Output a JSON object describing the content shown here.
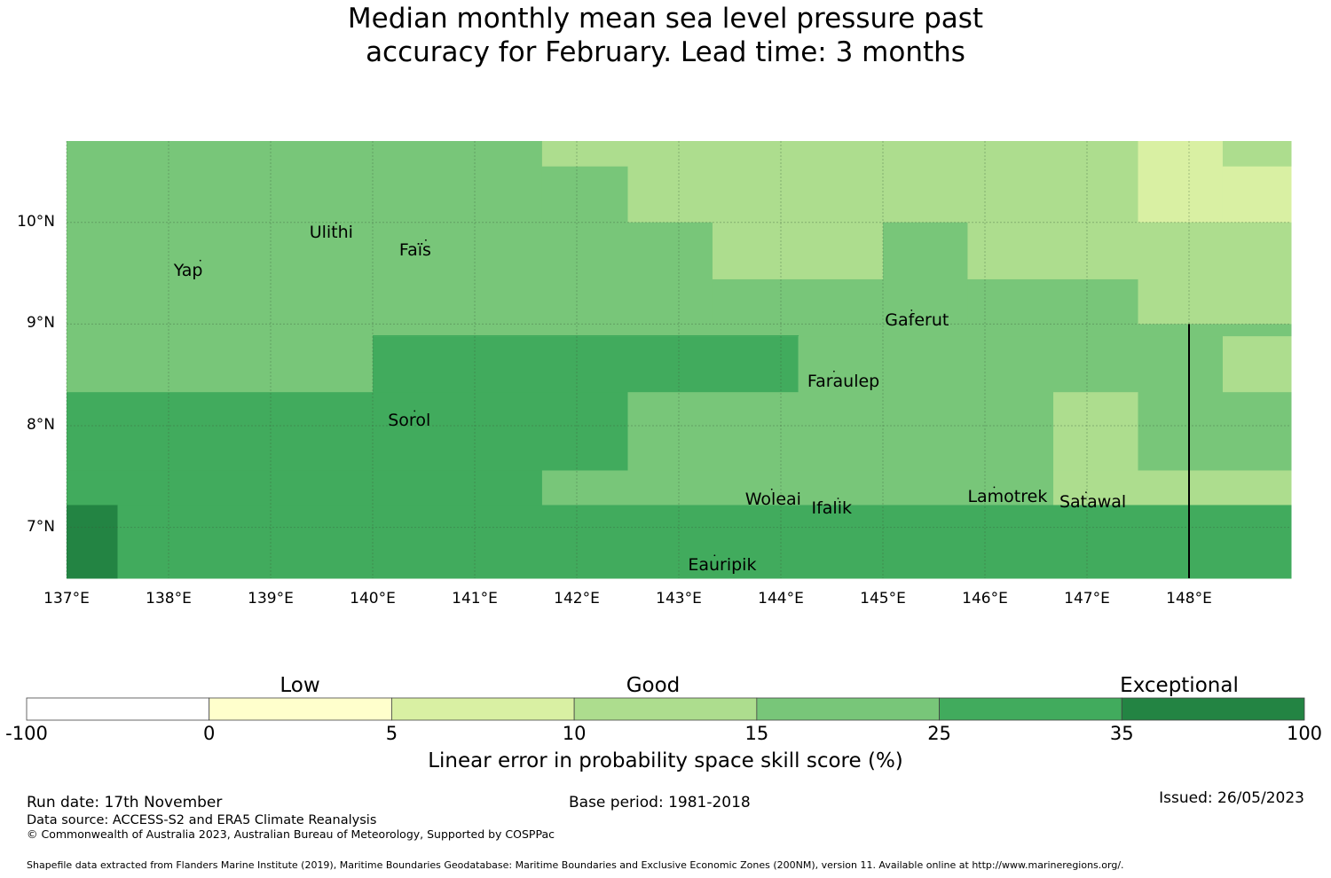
{
  "title": {
    "line1": "Median monthly mean sea level pressure past",
    "line2": "accuracy for February. Lead time: 3 months"
  },
  "map": {
    "lon_range": [
      137.0,
      149.0
    ],
    "lat_range": [
      6.5,
      10.8
    ],
    "x_ticks": [
      {
        "value": 137,
        "label": "137°E"
      },
      {
        "value": 138,
        "label": "138°E"
      },
      {
        "value": 139,
        "label": "139°E"
      },
      {
        "value": 140,
        "label": "140°E"
      },
      {
        "value": 141,
        "label": "141°E"
      },
      {
        "value": 142,
        "label": "142°E"
      },
      {
        "value": 143,
        "label": "143°E"
      },
      {
        "value": 144,
        "label": "144°E"
      },
      {
        "value": 145,
        "label": "145°E"
      },
      {
        "value": 146,
        "label": "146°E"
      },
      {
        "value": 147,
        "label": "147°E"
      },
      {
        "value": 148,
        "label": "148°E"
      }
    ],
    "y_ticks": [
      {
        "value": 10,
        "label": "10°N"
      },
      {
        "value": 9,
        "label": "9°N"
      },
      {
        "value": 8,
        "label": "8°N"
      },
      {
        "value": 7,
        "label": "7°N"
      }
    ],
    "boundary_line": {
      "lon": 148.0,
      "lat_from": 6.5,
      "lat_to": 9.0
    },
    "cells": [
      {
        "lon0": 137.0,
        "lon1": 141.66,
        "lat0": 10.0,
        "lat1": 10.8,
        "cls": 4
      },
      {
        "lon0": 141.66,
        "lon1": 142.5,
        "lat0": 10.55,
        "lat1": 10.8,
        "cls": 3
      },
      {
        "lon0": 141.66,
        "lon1": 142.5,
        "lat0": 10.0,
        "lat1": 10.55,
        "cls": 4
      },
      {
        "lon0": 142.5,
        "lon1": 147.5,
        "lat0": 10.0,
        "lat1": 10.8,
        "cls": 3
      },
      {
        "lon0": 147.5,
        "lon1": 148.33,
        "lat0": 10.0,
        "lat1": 10.8,
        "cls": 2
      },
      {
        "lon0": 148.33,
        "lon1": 149.0,
        "lat0": 10.55,
        "lat1": 10.8,
        "cls": 3
      },
      {
        "lon0": 148.33,
        "lon1": 149.0,
        "lat0": 10.0,
        "lat1": 10.55,
        "cls": 2
      },
      {
        "lon0": 137.0,
        "lon1": 143.33,
        "lat0": 9.0,
        "lat1": 10.0,
        "cls": 4
      },
      {
        "lon0": 143.33,
        "lon1": 145.0,
        "lat0": 9.44,
        "lat1": 10.0,
        "cls": 3
      },
      {
        "lon0": 143.33,
        "lon1": 145.0,
        "lat0": 9.0,
        "lat1": 9.44,
        "cls": 4
      },
      {
        "lon0": 145.0,
        "lon1": 145.83,
        "lat0": 9.0,
        "lat1": 10.0,
        "cls": 4
      },
      {
        "lon0": 145.83,
        "lon1": 147.5,
        "lat0": 9.44,
        "lat1": 10.0,
        "cls": 3
      },
      {
        "lon0": 145.83,
        "lon1": 147.5,
        "lat0": 9.0,
        "lat1": 9.44,
        "cls": 4
      },
      {
        "lon0": 147.5,
        "lon1": 149.0,
        "lat0": 9.0,
        "lat1": 10.0,
        "cls": 3
      },
      {
        "lon0": 137.0,
        "lon1": 140.0,
        "lat0": 8.33,
        "lat1": 9.0,
        "cls": 4
      },
      {
        "lon0": 140.0,
        "lon1": 144.17,
        "lat0": 8.33,
        "lat1": 8.88,
        "cls": 5
      },
      {
        "lon0": 140.0,
        "lon1": 149.0,
        "lat0": 8.88,
        "lat1": 9.0,
        "cls": 4
      },
      {
        "lon0": 140.0,
        "lon1": 144.17,
        "lat0": 8.88,
        "lat1": 8.89,
        "cls": 5
      },
      {
        "lon0": 144.17,
        "lon1": 148.33,
        "lat0": 8.33,
        "lat1": 8.88,
        "cls": 4
      },
      {
        "lon0": 148.33,
        "lon1": 149.0,
        "lat0": 8.33,
        "lat1": 8.88,
        "cls": 3
      },
      {
        "lon0": 140.0,
        "lon1": 144.17,
        "lat0": 8.88,
        "lat1": 8.88,
        "cls": 5
      },
      {
        "lon0": 137.0,
        "lon1": 142.5,
        "lat0": 7.56,
        "lat1": 8.33,
        "cls": 5
      },
      {
        "lon0": 142.5,
        "lon1": 146.67,
        "lat0": 7.56,
        "lat1": 8.33,
        "cls": 4
      },
      {
        "lon0": 146.67,
        "lon1": 147.5,
        "lat0": 7.56,
        "lat1": 8.33,
        "cls": 3
      },
      {
        "lon0": 147.5,
        "lon1": 149.0,
        "lat0": 7.56,
        "lat1": 8.33,
        "cls": 4
      },
      {
        "lon0": 137.0,
        "lon1": 141.66,
        "lat0": 7.22,
        "lat1": 7.56,
        "cls": 5
      },
      {
        "lon0": 141.66,
        "lon1": 146.67,
        "lat0": 7.22,
        "lat1": 7.56,
        "cls": 4
      },
      {
        "lon0": 146.67,
        "lon1": 149.0,
        "lat0": 7.22,
        "lat1": 7.56,
        "cls": 3
      },
      {
        "lon0": 137.0,
        "lon1": 137.5,
        "lat0": 6.5,
        "lat1": 7.22,
        "cls": 6
      },
      {
        "lon0": 137.5,
        "lon1": 149.0,
        "lat0": 6.5,
        "lat1": 7.22,
        "cls": 5
      }
    ],
    "places": [
      {
        "name": "Yap",
        "lon": 138.05,
        "lat": 9.52
      },
      {
        "name": "Ulithi",
        "lon": 139.38,
        "lat": 9.89
      },
      {
        "name": "Faïs",
        "lon": 140.26,
        "lat": 9.72
      },
      {
        "name": "Gaferut",
        "lon": 145.02,
        "lat": 9.03
      },
      {
        "name": "Faraulep",
        "lon": 144.26,
        "lat": 8.43
      },
      {
        "name": "Sorol",
        "lon": 140.15,
        "lat": 8.04
      },
      {
        "name": "Woleai",
        "lon": 143.65,
        "lat": 7.27
      },
      {
        "name": "Ifalik",
        "lon": 144.3,
        "lat": 7.18
      },
      {
        "name": "Lamotrek",
        "lon": 145.83,
        "lat": 7.29
      },
      {
        "name": "Satawal",
        "lon": 146.73,
        "lat": 7.24
      },
      {
        "name": "Eauripik",
        "lon": 143.09,
        "lat": 6.62
      }
    ]
  },
  "legend": {
    "classes": [
      {
        "from": -100,
        "to": 0,
        "color": "#ffffff"
      },
      {
        "from": 0,
        "to": 5,
        "color": "#ffffcc"
      },
      {
        "from": 5,
        "to": 10,
        "color": "#d9f0a3"
      },
      {
        "from": 10,
        "to": 15,
        "color": "#addd8e"
      },
      {
        "from": 15,
        "to": 25,
        "color": "#78c679"
      },
      {
        "from": 25,
        "to": 35,
        "color": "#41ab5d"
      },
      {
        "from": 35,
        "to": 100,
        "color": "#238443"
      }
    ],
    "tick_labels": [
      "-100",
      "0",
      "5",
      "10",
      "15",
      "25",
      "35",
      "100"
    ],
    "categories": [
      "Low",
      "Good",
      "Exceptional"
    ],
    "label": "Linear error in probability space skill score (%)"
  },
  "footer": {
    "run_date": "Run date: 17th November",
    "base_period": "Base period: 1981-2018",
    "issued": "Issued: 26/05/2023",
    "data_source": "Data source: ACCESS-S2 and ERA5 Climate Reanalysis",
    "copyright": "© Commonwealth of Australia 2023, Australian Bureau of Meteorology, Supported by COSPPac",
    "shapefile": "Shapefile data extracted from Flanders Marine Institute (2019), Maritime Boundaries Geodatabase: Maritime Boundaries and Exclusive Economic Zones (200NM), version 11. Available online at http://www.marineregions.org/."
  }
}
